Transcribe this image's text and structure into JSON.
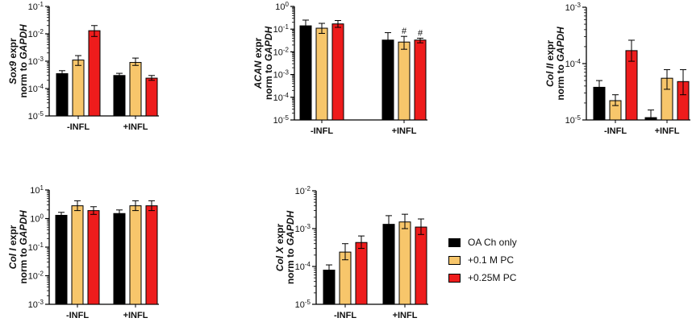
{
  "colors": {
    "series": [
      "#000000",
      "#f7c66b",
      "#ee1c1c"
    ],
    "axis": "#000000"
  },
  "legend": {
    "items": [
      {
        "label": "OA Ch only"
      },
      {
        "label": "+0.1 M PC"
      },
      {
        "label": "+0.25M PC"
      }
    ]
  },
  "chart_data": [
    {
      "type": "bar",
      "id": "sox9",
      "ylabel_lines": [
        [
          {
            "text": "Sox9",
            "italic": true
          },
          {
            "text": " expr",
            "italic": false
          }
        ],
        [
          {
            "text": "norm to ",
            "italic": false
          },
          {
            "text": "GAPDH",
            "italic": true
          }
        ]
      ],
      "yscale": "log",
      "ylim_exp": [
        -5,
        -1
      ],
      "tick_labels": [
        "10-5",
        "10-4",
        "10-3",
        "10-2",
        "10-1"
      ],
      "categories": [
        "-INFL",
        "+INFL"
      ],
      "series": [
        {
          "name": "OA Ch only",
          "values": [
            0.00035,
            0.0003
          ],
          "err_low": [
            0.00027,
            0.00025
          ],
          "err_high": [
            0.00045,
            0.00036
          ]
        },
        {
          "name": "+0.1 M PC",
          "values": [
            0.0011,
            0.0009
          ],
          "err_low": [
            0.0007,
            0.0007
          ],
          "err_high": [
            0.0016,
            0.0013
          ]
        },
        {
          "name": "+0.25M PC",
          "values": [
            0.013,
            0.00024
          ],
          "err_low": [
            0.008,
            0.0002
          ],
          "err_high": [
            0.02,
            0.0003
          ]
        }
      ],
      "annotations": []
    },
    {
      "type": "bar",
      "id": "acan",
      "ylabel_lines": [
        [
          {
            "text": "ACAN",
            "italic": true
          },
          {
            "text": " expr",
            "italic": false
          }
        ],
        [
          {
            "text": "norm to ",
            "italic": false
          },
          {
            "text": "GAPDH",
            "italic": true
          }
        ]
      ],
      "yscale": "log",
      "ylim_exp": [
        -5,
        0
      ],
      "tick_labels": [
        "10-5",
        "10-4",
        "10-3",
        "10-2",
        "10-1",
        "100"
      ],
      "categories": [
        "-INFL",
        "+INFL"
      ],
      "series": [
        {
          "name": "OA Ch only",
          "values": [
            0.14,
            0.033
          ],
          "err_low": [
            0.08,
            0.015
          ],
          "err_high": [
            0.25,
            0.07
          ]
        },
        {
          "name": "+0.1 M PC",
          "values": [
            0.11,
            0.027
          ],
          "err_low": [
            0.065,
            0.013
          ],
          "err_high": [
            0.18,
            0.048
          ]
        },
        {
          "name": "+0.25M PC",
          "values": [
            0.17,
            0.033
          ],
          "err_low": [
            0.12,
            0.025
          ],
          "err_high": [
            0.24,
            0.04
          ]
        }
      ],
      "annotations": [
        {
          "category": 1,
          "series": 1,
          "text": "#"
        },
        {
          "category": 1,
          "series": 2,
          "text": "#"
        }
      ]
    },
    {
      "type": "bar",
      "id": "colii",
      "ylabel_lines": [
        [
          {
            "text": "Col II",
            "italic": true
          },
          {
            "text": " expr",
            "italic": false
          }
        ],
        [
          {
            "text": "norm to ",
            "italic": false
          },
          {
            "text": "GAPDH",
            "italic": true
          }
        ]
      ],
      "yscale": "log",
      "ylim_exp": [
        -5,
        -3
      ],
      "tick_labels": [
        "10-5",
        "10-4",
        "10-3"
      ],
      "categories": [
        "-INFL",
        "+INFL"
      ],
      "series": [
        {
          "name": "OA Ch only",
          "values": [
            3.8e-05,
            1.1e-05
          ],
          "err_low": [
            3e-05,
            1e-05
          ],
          "err_high": [
            5e-05,
            1.5e-05
          ]
        },
        {
          "name": "+0.1 M PC",
          "values": [
            2.2e-05,
            5.5e-05
          ],
          "err_low": [
            1.8e-05,
            3.5e-05
          ],
          "err_high": [
            2.8e-05,
            7.8e-05
          ]
        },
        {
          "name": "+0.25M PC",
          "values": [
            0.00017,
            4.8e-05
          ],
          "err_low": [
            0.00011,
            2.8e-05
          ],
          "err_high": [
            0.00026,
            7.8e-05
          ]
        }
      ],
      "annotations": []
    },
    {
      "type": "bar",
      "id": "coli",
      "ylabel_lines": [
        [
          {
            "text": "Col I",
            "italic": true
          },
          {
            "text": " expr",
            "italic": false
          }
        ],
        [
          {
            "text": "norm to ",
            "italic": false
          },
          {
            "text": "GAPDH",
            "italic": true
          }
        ]
      ],
      "yscale": "log",
      "ylim_exp": [
        -3,
        1
      ],
      "tick_labels": [
        "10-3",
        "10-2",
        "10-1",
        "100",
        "101"
      ],
      "categories": [
        "-INFL",
        "+INFL"
      ],
      "series": [
        {
          "name": "OA Ch only",
          "values": [
            1.3,
            1.5
          ],
          "err_low": [
            1.0,
            1.1
          ],
          "err_high": [
            1.65,
            2.0
          ]
        },
        {
          "name": "+0.1 M PC",
          "values": [
            2.8,
            2.8
          ],
          "err_low": [
            1.9,
            1.9
          ],
          "err_high": [
            4.2,
            4.2
          ]
        },
        {
          "name": "+0.25M PC",
          "values": [
            1.9,
            2.8
          ],
          "err_low": [
            1.4,
            1.9
          ],
          "err_high": [
            2.6,
            4.2
          ]
        }
      ],
      "annotations": []
    },
    {
      "type": "bar",
      "id": "colx",
      "ylabel_lines": [
        [
          {
            "text": "Col X",
            "italic": true
          },
          {
            "text": " expr",
            "italic": false
          }
        ],
        [
          {
            "text": "norm to ",
            "italic": false
          },
          {
            "text": "GAPDH",
            "italic": true
          }
        ]
      ],
      "yscale": "log",
      "ylim_exp": [
        -5,
        -2
      ],
      "tick_labels": [
        "10-5",
        "10-4",
        "10-3",
        "10-2"
      ],
      "categories": [
        "-INFL",
        "+INFL"
      ],
      "series": [
        {
          "name": "OA Ch only",
          "values": [
            8e-05,
            0.0013
          ],
          "err_low": [
            5.5e-05,
            0.00085
          ],
          "err_high": [
            0.00011,
            0.0022
          ]
        },
        {
          "name": "+0.1 M PC",
          "values": [
            0.00024,
            0.0015
          ],
          "err_low": [
            0.00015,
            0.001
          ],
          "err_high": [
            0.0004,
            0.0024
          ]
        },
        {
          "name": "+0.25M PC",
          "values": [
            0.00043,
            0.0011
          ],
          "err_low": [
            0.0003,
            0.0007
          ],
          "err_high": [
            0.00064,
            0.0018
          ]
        }
      ],
      "annotations": []
    }
  ]
}
